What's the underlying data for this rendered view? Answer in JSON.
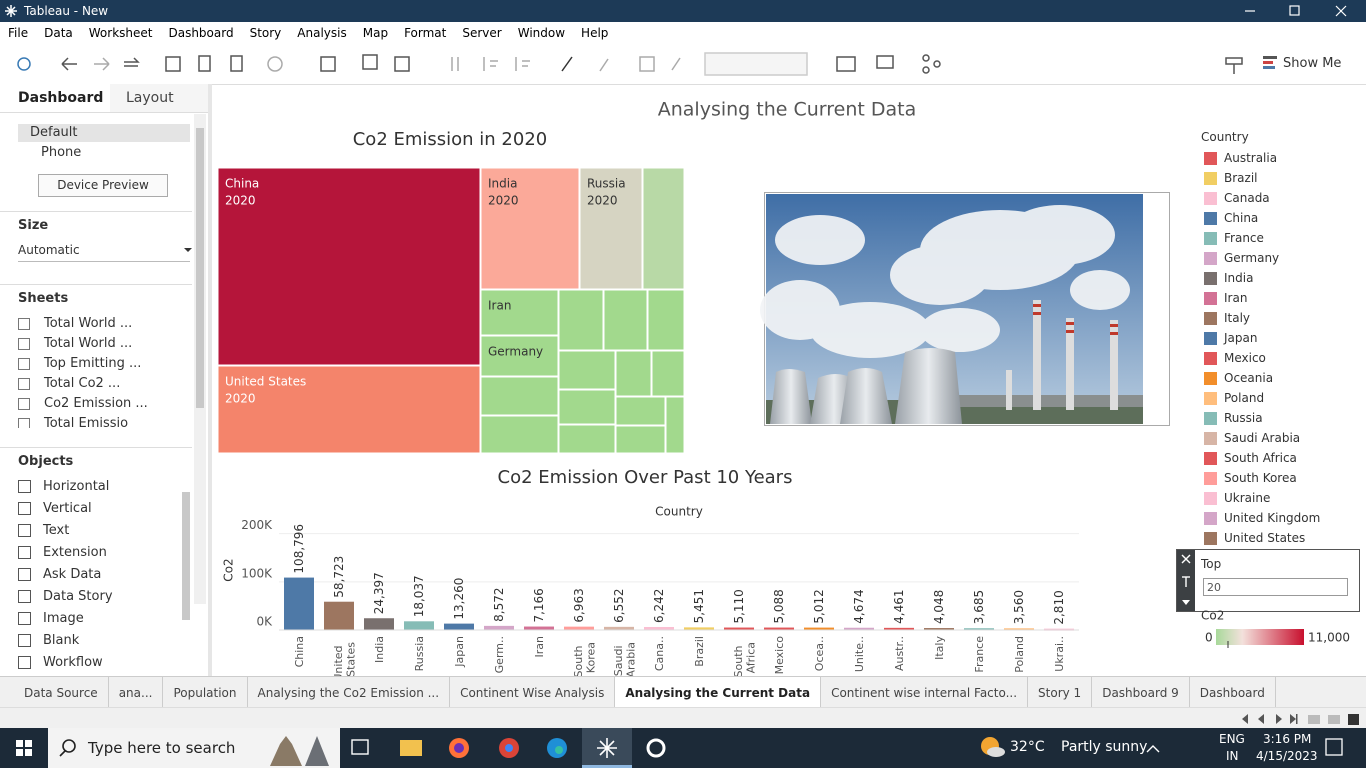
{
  "window": {
    "title": "Tableau - New"
  },
  "menu": [
    "File",
    "Data",
    "Worksheet",
    "Dashboard",
    "Story",
    "Analysis",
    "Map",
    "Format",
    "Server",
    "Window",
    "Help"
  ],
  "toolbar": {
    "show_me": "Show Me"
  },
  "side_panel": {
    "tabs": [
      "Dashboard",
      "Layout"
    ],
    "devices": [
      "Default",
      "Phone"
    ],
    "device_preview": "Device Preview",
    "size": {
      "heading": "Size",
      "value": "Automatic"
    },
    "sheets": {
      "heading": "Sheets",
      "items": [
        "Total World ...",
        "Total World ...",
        "Top Emitting ...",
        "Total Co2 ...",
        "Co2 Emission ...",
        "Total Emissio"
      ]
    },
    "objects": {
      "heading": "Objects",
      "items": [
        "Horizontal",
        "Vertical",
        "Text",
        "Extension",
        "Ask Data",
        "Data Story",
        "Image",
        "Blank",
        "Workflow"
      ]
    }
  },
  "dashboard": {
    "title": "Analysing the Current Data",
    "treemap": {
      "title": "Co2 Emission in 2020",
      "tiles": [
        {
          "name": "China",
          "year": "2020"
        },
        {
          "name": "United States",
          "year": "2020"
        },
        {
          "name": "India",
          "year": "2020"
        },
        {
          "name": "Russia",
          "year": "2020"
        },
        {
          "name": "Iran"
        },
        {
          "name": "Germany"
        }
      ]
    }
  },
  "chart_data": {
    "type": "bar",
    "title": "Co2 Emission Over Past 10 Years",
    "header": "Country",
    "y_label": "Co2",
    "categories": [
      "China",
      "United States",
      "India",
      "Russia",
      "Japan",
      "Germ..",
      "Iran",
      "South Korea",
      "Saudi Arabia",
      "Cana..",
      "Brazil",
      "South Africa",
      "Mexico",
      "Ocea..",
      "Unite..",
      "Austr..",
      "Italy",
      "France",
      "Poland",
      "Ukrai.."
    ],
    "values": [
      108796,
      58723,
      24397,
      18037,
      13260,
      8572,
      7166,
      6963,
      6552,
      6242,
      5451,
      5110,
      5088,
      5012,
      4674,
      4461,
      4048,
      3685,
      3560,
      2810
    ],
    "value_labels": [
      "108,796",
      "58,723",
      "24,397",
      "18,037",
      "13,260",
      "8,572",
      "7,166",
      "6,963",
      "6,552",
      "6,242",
      "5,451",
      "5,110",
      "5,088",
      "5,012",
      "4,674",
      "4,461",
      "4,048",
      "3,685",
      "3,560",
      "2,810"
    ],
    "colors": [
      "#4e79a7",
      "#9d7660",
      "#79706e",
      "#86bcb6",
      "#4e79a7",
      "#d4a6c8",
      "#d37295",
      "#ff9d9a",
      "#d7b5a6",
      "#fabfd2",
      "#f1ce63",
      "#e15759",
      "#e15759",
      "#f28e2b",
      "#d4a6c8",
      "#e15759",
      "#9d7660",
      "#86bcb6",
      "#ffbe7d",
      "#fabfd2"
    ],
    "ylim": [
      0,
      220000
    ],
    "yticks": [
      {
        "value": 0,
        "label": "0K"
      },
      {
        "value": 100000,
        "label": "100K"
      },
      {
        "value": 200000,
        "label": "200K"
      }
    ],
    "grid": true
  },
  "legend": {
    "title": "Country",
    "items": [
      {
        "name": "Australia",
        "color": "#e15759"
      },
      {
        "name": "Brazil",
        "color": "#f1ce63"
      },
      {
        "name": "Canada",
        "color": "#fabfd2"
      },
      {
        "name": "China",
        "color": "#4e79a7"
      },
      {
        "name": "France",
        "color": "#86bcb6"
      },
      {
        "name": "Germany",
        "color": "#d4a6c8"
      },
      {
        "name": "India",
        "color": "#79706e"
      },
      {
        "name": "Iran",
        "color": "#d37295"
      },
      {
        "name": "Italy",
        "color": "#9d7660"
      },
      {
        "name": "Japan",
        "color": "#4e79a7"
      },
      {
        "name": "Mexico",
        "color": "#e15759"
      },
      {
        "name": "Oceania",
        "color": "#f28e2b"
      },
      {
        "name": "Poland",
        "color": "#ffbe7d"
      },
      {
        "name": "Russia",
        "color": "#86bcb6"
      },
      {
        "name": "Saudi Arabia",
        "color": "#d7b5a6"
      },
      {
        "name": "South Africa",
        "color": "#e15759"
      },
      {
        "name": "South Korea",
        "color": "#ff9d9a"
      },
      {
        "name": "Ukraine",
        "color": "#fabfd2"
      },
      {
        "name": "United Kingdom",
        "color": "#d4a6c8"
      },
      {
        "name": "United States",
        "color": "#9d7660"
      }
    ]
  },
  "filter": {
    "title": "Top",
    "value": "20"
  },
  "color_legend": {
    "title": "Co2",
    "min": 0,
    "max": {
      "value": 11000,
      "label": "11,000"
    }
  },
  "tabs": [
    "Data Source",
    "ana...",
    "Population",
    "Analysing the Co2 Emission ...",
    "Continent Wise Analysis",
    "Analysing the Current Data",
    "Continent wise internal Facto...",
    "Story 1",
    "Dashboard 9",
    "Dashboard"
  ],
  "taskbar": {
    "search": "Type here to search",
    "temperature": "32°C",
    "condition": "Partly sunny",
    "language": "ENG",
    "region": "IN",
    "time": "3:16 PM",
    "date": "4/15/2023"
  }
}
